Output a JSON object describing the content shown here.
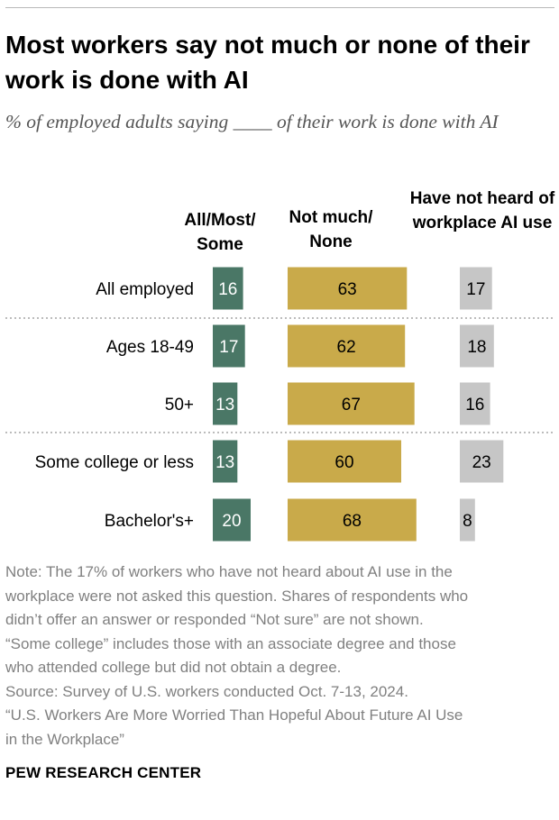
{
  "title": "Most workers say not much or none of their work is done with AI",
  "subtitle": "% of employed adults saying ____ of their work is done with AI",
  "chart_data": {
    "type": "bar",
    "categories": [
      "All employed",
      "Ages 18-49",
      "50+",
      "Some college or less",
      "Bachelor's+"
    ],
    "series": [
      {
        "name": "All/Most/ Some",
        "values": [
          16,
          17,
          13,
          13,
          20
        ],
        "color": "#4a7766"
      },
      {
        "name": "Not much/ None",
        "values": [
          63,
          62,
          67,
          60,
          68
        ],
        "color": "#c9aa4a"
      },
      {
        "name": "Have not heard of workplace AI use",
        "values": [
          17,
          18,
          16,
          23,
          8
        ],
        "color": "#c6c6c6"
      }
    ],
    "groups": [
      [
        "All employed"
      ],
      [
        "Ages 18-49",
        "50+"
      ],
      [
        "Some college or less",
        "Bachelor's+"
      ]
    ],
    "value_text_colors": [
      "#ffffff",
      "#000000",
      "#000000"
    ]
  },
  "note_lines": [
    "Note: The 17% of workers who have not heard about AI use in the",
    "workplace were not asked this question. Shares of respondents who",
    "didn’t offer an answer or responded “Not sure” are not shown.",
    "“Some college” includes those with an associate degree and those",
    "who attended college but did not obtain a degree.",
    "Source: Survey of U.S. workers conducted Oct. 7-13, 2024.",
    "“U.S. Workers Are More Worried Than Hopeful About Future AI Use",
    "in the Workplace”"
  ],
  "source_brand": "PEW RESEARCH CENTER"
}
